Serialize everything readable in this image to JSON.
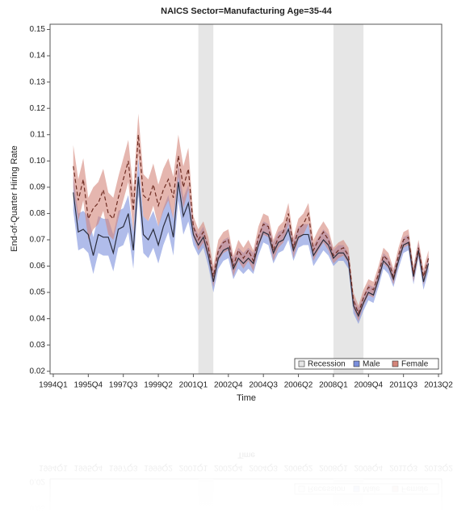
{
  "chart_data": {
    "type": "band-line",
    "title": "NAICS Sector=Manufacturing Age=35-44",
    "x_label": "Time",
    "y_label": "End-of-Quarter Hiring Rate",
    "xlim": [
      1993.84,
      2013.41
    ],
    "ylim": [
      0.019,
      0.152
    ],
    "xticks": [
      {
        "value": 1994,
        "label": "1994Q1"
      },
      {
        "value": 1995.75,
        "label": "1995Q4"
      },
      {
        "value": 1997.5,
        "label": "1997Q3"
      },
      {
        "value": 1999.25,
        "label": "1999Q2"
      },
      {
        "value": 2001,
        "label": "2001Q1"
      },
      {
        "value": 2002.75,
        "label": "2002Q4"
      },
      {
        "value": 2004.5,
        "label": "2004Q3"
      },
      {
        "value": 2006.25,
        "label": "2006Q2"
      },
      {
        "value": 2008,
        "label": "2008Q1"
      },
      {
        "value": 2009.75,
        "label": "2009Q4"
      },
      {
        "value": 2011.5,
        "label": "2011Q3"
      },
      {
        "value": 2013.25,
        "label": "2013Q2"
      }
    ],
    "yticks": [
      0.02,
      0.03,
      0.04,
      0.05,
      0.06,
      0.07,
      0.08,
      0.09,
      {
        "value": 0.1,
        "label": "0.10"
      },
      0.11,
      0.12,
      0.13,
      0.14,
      0.15
    ],
    "recession_label": "Recession",
    "recession_color": "#e6e6e6",
    "recessions": [
      [
        2001.25,
        2002.0
      ],
      [
        2008.0,
        2009.5
      ]
    ],
    "legend": "lower-right",
    "x": [
      1995,
      1995.25,
      1995.5,
      1995.75,
      1996,
      1996.25,
      1996.5,
      1996.75,
      1997,
      1997.25,
      1997.5,
      1997.75,
      1998,
      1998.25,
      1998.5,
      1998.75,
      1999,
      1999.25,
      1999.5,
      1999.75,
      2000,
      2000.25,
      2000.5,
      2000.75,
      2001,
      2001.25,
      2001.5,
      2001.75,
      2002,
      2002.25,
      2002.5,
      2002.75,
      2003,
      2003.25,
      2003.5,
      2003.75,
      2004,
      2004.25,
      2004.5,
      2004.75,
      2005,
      2005.25,
      2005.5,
      2005.75,
      2006,
      2006.25,
      2006.5,
      2006.75,
      2007,
      2007.25,
      2007.5,
      2007.75,
      2008,
      2008.25,
      2008.5,
      2008.75,
      2009,
      2009.25,
      2009.5,
      2009.75,
      2010,
      2010.25,
      2010.5,
      2010.75,
      2011,
      2011.25,
      2011.5,
      2011.75,
      2012,
      2012.25,
      2012.5,
      2012.75
    ],
    "series": [
      {
        "name": "Male",
        "color": "#7b8fdc",
        "line_color": "#2b2d3c",
        "dash": false,
        "values": [
          0.088,
          0.073,
          0.074,
          0.072,
          0.064,
          0.072,
          0.071,
          0.071,
          0.065,
          0.074,
          0.075,
          0.08,
          0.066,
          0.094,
          0.072,
          0.07,
          0.074,
          0.068,
          0.075,
          0.08,
          0.071,
          0.092,
          0.079,
          0.084,
          0.072,
          0.068,
          0.071,
          0.064,
          0.054,
          0.063,
          0.066,
          0.067,
          0.059,
          0.063,
          0.061,
          0.063,
          0.061,
          0.068,
          0.073,
          0.072,
          0.065,
          0.069,
          0.07,
          0.074,
          0.066,
          0.071,
          0.072,
          0.072,
          0.064,
          0.067,
          0.07,
          0.068,
          0.063,
          0.065,
          0.065,
          0.062,
          0.045,
          0.041,
          0.046,
          0.05,
          0.049,
          0.055,
          0.062,
          0.06,
          0.055,
          0.062,
          0.068,
          0.069,
          0.056,
          0.066,
          0.054,
          0.061
        ],
        "lower": [
          0.081,
          0.066,
          0.067,
          0.065,
          0.057,
          0.065,
          0.064,
          0.064,
          0.058,
          0.067,
          0.068,
          0.073,
          0.059,
          0.087,
          0.065,
          0.063,
          0.067,
          0.061,
          0.068,
          0.073,
          0.064,
          0.085,
          0.072,
          0.077,
          0.068,
          0.064,
          0.067,
          0.06,
          0.05,
          0.059,
          0.062,
          0.063,
          0.055,
          0.059,
          0.057,
          0.059,
          0.057,
          0.064,
          0.069,
          0.068,
          0.061,
          0.065,
          0.066,
          0.07,
          0.062,
          0.067,
          0.068,
          0.068,
          0.06,
          0.063,
          0.066,
          0.064,
          0.06,
          0.062,
          0.062,
          0.059,
          0.042,
          0.038,
          0.043,
          0.047,
          0.046,
          0.052,
          0.059,
          0.057,
          0.052,
          0.059,
          0.065,
          0.066,
          0.053,
          0.063,
          0.051,
          0.058
        ],
        "upper": [
          0.095,
          0.08,
          0.081,
          0.079,
          0.071,
          0.079,
          0.078,
          0.078,
          0.072,
          0.081,
          0.082,
          0.087,
          0.073,
          0.101,
          0.079,
          0.077,
          0.081,
          0.075,
          0.082,
          0.087,
          0.078,
          0.099,
          0.086,
          0.091,
          0.076,
          0.072,
          0.075,
          0.068,
          0.058,
          0.067,
          0.07,
          0.071,
          0.063,
          0.067,
          0.065,
          0.067,
          0.065,
          0.072,
          0.077,
          0.076,
          0.069,
          0.073,
          0.074,
          0.078,
          0.07,
          0.075,
          0.076,
          0.076,
          0.068,
          0.071,
          0.074,
          0.072,
          0.066,
          0.068,
          0.068,
          0.065,
          0.048,
          0.044,
          0.049,
          0.053,
          0.052,
          0.058,
          0.065,
          0.063,
          0.058,
          0.065,
          0.071,
          0.072,
          0.059,
          0.069,
          0.057,
          0.064
        ]
      },
      {
        "name": "Female",
        "color": "#d4857a",
        "line_color": "#6e2c22",
        "dash": true,
        "values": [
          0.098,
          0.085,
          0.093,
          0.078,
          0.082,
          0.084,
          0.089,
          0.08,
          0.078,
          0.086,
          0.093,
          0.1,
          0.081,
          0.11,
          0.087,
          0.085,
          0.091,
          0.083,
          0.089,
          0.093,
          0.086,
          0.102,
          0.09,
          0.097,
          0.075,
          0.07,
          0.073,
          0.067,
          0.056,
          0.066,
          0.069,
          0.07,
          0.06,
          0.066,
          0.063,
          0.066,
          0.062,
          0.071,
          0.076,
          0.075,
          0.066,
          0.071,
          0.073,
          0.08,
          0.067,
          0.074,
          0.076,
          0.08,
          0.066,
          0.07,
          0.073,
          0.07,
          0.064,
          0.066,
          0.067,
          0.064,
          0.047,
          0.042,
          0.048,
          0.052,
          0.051,
          0.057,
          0.064,
          0.062,
          0.056,
          0.064,
          0.07,
          0.071,
          0.057,
          0.067,
          0.056,
          0.063
        ],
        "lower": [
          0.09,
          0.077,
          0.085,
          0.07,
          0.074,
          0.076,
          0.081,
          0.072,
          0.07,
          0.078,
          0.085,
          0.092,
          0.073,
          0.102,
          0.079,
          0.077,
          0.083,
          0.075,
          0.081,
          0.085,
          0.078,
          0.094,
          0.082,
          0.089,
          0.071,
          0.066,
          0.069,
          0.063,
          0.052,
          0.062,
          0.065,
          0.066,
          0.056,
          0.062,
          0.059,
          0.062,
          0.058,
          0.067,
          0.072,
          0.071,
          0.062,
          0.067,
          0.069,
          0.076,
          0.063,
          0.07,
          0.072,
          0.076,
          0.062,
          0.066,
          0.069,
          0.066,
          0.061,
          0.063,
          0.064,
          0.061,
          0.044,
          0.039,
          0.045,
          0.049,
          0.048,
          0.054,
          0.061,
          0.059,
          0.053,
          0.061,
          0.067,
          0.068,
          0.054,
          0.064,
          0.053,
          0.06
        ],
        "upper": [
          0.106,
          0.093,
          0.101,
          0.086,
          0.09,
          0.092,
          0.097,
          0.088,
          0.086,
          0.094,
          0.101,
          0.108,
          0.089,
          0.118,
          0.095,
          0.093,
          0.099,
          0.091,
          0.097,
          0.101,
          0.094,
          0.11,
          0.098,
          0.105,
          0.079,
          0.074,
          0.077,
          0.071,
          0.06,
          0.07,
          0.073,
          0.074,
          0.064,
          0.07,
          0.067,
          0.07,
          0.066,
          0.075,
          0.08,
          0.079,
          0.07,
          0.075,
          0.077,
          0.084,
          0.071,
          0.078,
          0.08,
          0.084,
          0.07,
          0.074,
          0.077,
          0.074,
          0.067,
          0.069,
          0.07,
          0.067,
          0.05,
          0.045,
          0.051,
          0.055,
          0.054,
          0.06,
          0.067,
          0.065,
          0.059,
          0.067,
          0.073,
          0.074,
          0.06,
          0.07,
          0.059,
          0.066
        ]
      }
    ]
  }
}
